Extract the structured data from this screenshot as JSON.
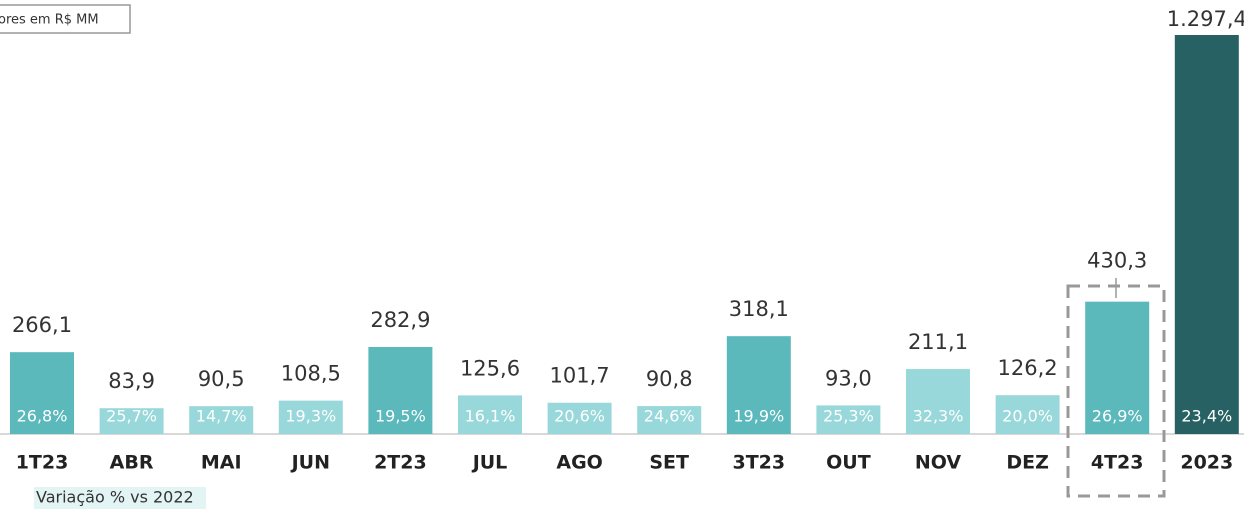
{
  "chart_data": {
    "type": "bar",
    "note": "ores em R$ MM",
    "footer": "Variação % vs 2022",
    "categories": [
      "1T23",
      "ABR",
      "MAI",
      "JUN",
      "2T23",
      "JUL",
      "AGO",
      "SET",
      "3T23",
      "OUT",
      "NOV",
      "DEZ",
      "4T23",
      "2023"
    ],
    "values": [
      266.1,
      83.9,
      90.5,
      108.5,
      282.9,
      125.6,
      101.7,
      90.8,
      318.1,
      93.0,
      211.1,
      126.2,
      430.3,
      1297.4
    ],
    "value_labels": [
      "266,1",
      "83,9",
      "90,5",
      "108,5",
      "282,9",
      "125,6",
      "101,7",
      "90,8",
      "318,1",
      "93,0",
      "211,1",
      "126,2",
      "430,3",
      "1.297,4"
    ],
    "variation_labels": [
      "26,8%",
      "25,7%",
      "14,7%",
      "19,3%",
      "19,5%",
      "16,1%",
      "20,6%",
      "24,6%",
      "19,9%",
      "25,3%",
      "32,3%",
      "20,0%",
      "26,9%",
      "23,4%"
    ],
    "colors": [
      "#5bb8bb",
      "#99d8da",
      "#99d8da",
      "#99d8da",
      "#5bb8bb",
      "#99d8da",
      "#99d8da",
      "#99d8da",
      "#5bb8bb",
      "#99d8da",
      "#99d8da",
      "#99d8da",
      "#5bb8bb",
      "#276163"
    ],
    "ylim": [
      0,
      1297.4
    ]
  }
}
